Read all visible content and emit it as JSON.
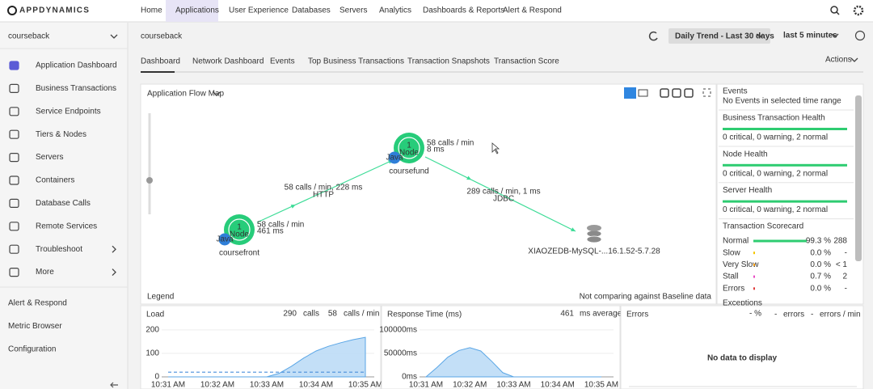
{
  "nav": {
    "brand": "APPDYNAMICS",
    "tabs": [
      "Home",
      "Applications",
      "User Experience",
      "Databases",
      "Servers",
      "Analytics",
      "Dashboards & Reports",
      "Alert & Respond"
    ],
    "active_tab": 1
  },
  "sidebar": {
    "app": "courseback",
    "items": [
      "Application Dashboard",
      "Business Transactions",
      "Service Endpoints",
      "Tiers & Nodes",
      "Servers",
      "Containers",
      "Database Calls",
      "Remote Services",
      "Troubleshoot",
      "More"
    ],
    "active_item": 0,
    "footer": [
      "Alert & Respond",
      "Metric Browser",
      "Configuration"
    ]
  },
  "header": {
    "title": "courseback",
    "trend": "Daily Trend - Last 30 days",
    "range": "last 5 minutes",
    "tabs": [
      "Dashboard",
      "Network Dashboard",
      "Events",
      "Top Business Transactions",
      "Transaction Snapshots",
      "Transaction Score"
    ],
    "active_tab": 0,
    "actions": "Actions"
  },
  "flow_map": {
    "title": "Application Flow Map",
    "nodes": [
      {
        "name": "coursefund",
        "count": 1,
        "unit": "Node",
        "agent": "Java",
        "calls": "58 calls / min",
        "time": "8 ms"
      },
      {
        "name": "coursefront",
        "count": 1,
        "unit": "Node",
        "agent": "Java",
        "calls": "58 calls / min",
        "time": "461 ms"
      }
    ],
    "database": "XIAOZEDB-MySQL-...16.1.52-5.7.28",
    "edges": [
      {
        "stats": "58 calls / min, 228 ms",
        "protocol": "HTTP"
      },
      {
        "stats": "289 calls / min, 1 ms",
        "protocol": "JDBC"
      }
    ],
    "legend": "Legend",
    "baseline": "Not comparing against Baseline data"
  },
  "side_panel": {
    "events": {
      "title": "Events",
      "text": "No Events in selected time range"
    },
    "health": [
      {
        "title": "Business Transaction Health",
        "text": "0 critical, 0 warning, 2 normal"
      },
      {
        "title": "Node Health",
        "text": "0 critical, 0 warning, 2 normal"
      },
      {
        "title": "Server Health",
        "text": "0 critical, 0 warning, 2 normal"
      }
    ],
    "scorecard": {
      "title": "Transaction Scorecard",
      "rows": [
        {
          "label": "Normal",
          "percent": "99.3 %",
          "count": "288",
          "color": "#2ecc71"
        },
        {
          "label": "Slow",
          "percent": "0.0 %",
          "count": "-",
          "color": "#f5c400"
        },
        {
          "label": "Very Slow",
          "percent": "0.0 %",
          "count": "< 1",
          "color": "#f39c12"
        },
        {
          "label": "Stall",
          "percent": "0.7 %",
          "count": "2",
          "color": "#e84cc4"
        },
        {
          "label": "Errors",
          "percent": "0.0 %",
          "count": "-",
          "color": "#e03b3b"
        }
      ],
      "more": "Exceptions"
    }
  },
  "chart_data": [
    {
      "type": "area",
      "title": "Load",
      "total": 290,
      "total_unit": "calls",
      "rate": 58,
      "rate_unit": "calls / min",
      "categories": [
        "10:31 AM",
        null,
        null,
        null,
        "10:32 AM",
        null,
        null,
        null,
        "10:33 AM",
        null,
        null,
        null,
        "10:34 AM",
        null,
        null,
        null,
        "10:35 AM"
      ],
      "series": [
        {
          "color": "#5aa6e6",
          "values": [
            0,
            0,
            0,
            0,
            0,
            0,
            0,
            0,
            0,
            15,
            45,
            80,
            110,
            130,
            145,
            158,
            168
          ]
        },
        {
          "color": "#4a8fdc",
          "dashed": true,
          "values": [
            20,
            20,
            20,
            20,
            20,
            20,
            20,
            20,
            20,
            20,
            20,
            20,
            20,
            20,
            20,
            20,
            20
          ]
        }
      ],
      "ylim": [
        0,
        220
      ],
      "yticks": [
        0,
        100,
        200
      ],
      "grid": true
    },
    {
      "type": "area",
      "title": "Response Time (ms)",
      "average": 461,
      "average_unit": "ms average",
      "categories": [
        "10:31 AM",
        null,
        null,
        null,
        "10:32 AM",
        null,
        null,
        null,
        "10:33 AM",
        null,
        null,
        null,
        "10:34 AM",
        null,
        null,
        null,
        "10:35 AM"
      ],
      "series": [
        {
          "color": "#5aa6e6",
          "values": [
            0,
            20000,
            42000,
            56000,
            62000,
            55000,
            33000,
            9000,
            0,
            0,
            0,
            0,
            0,
            0,
            0,
            0,
            0
          ]
        }
      ],
      "ylim": [
        0,
        110000
      ],
      "yticks": [
        {
          "value": 0,
          "label": "0ms"
        },
        {
          "value": 50000,
          "label": "50000ms"
        },
        {
          "value": 100000,
          "label": "100000ms"
        }
      ],
      "grid": true
    }
  ],
  "errors_panel": {
    "title": "Errors",
    "percent": "- %",
    "errors": "-",
    "errors_label": "errors",
    "rate": "-",
    "rate_label": "errors / min",
    "empty": "No data to display"
  }
}
